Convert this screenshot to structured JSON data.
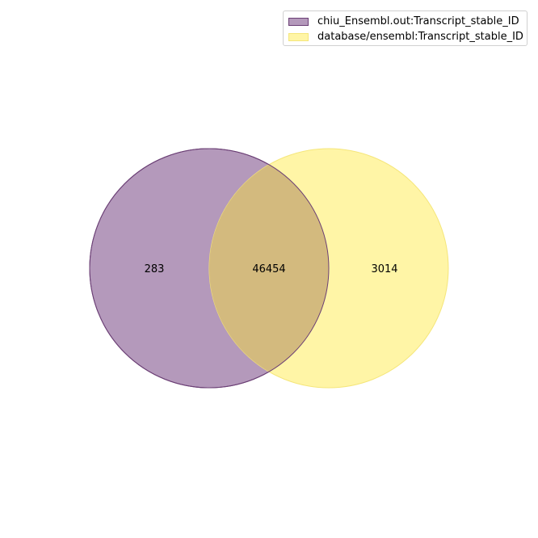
{
  "sets": [
    {
      "name": "chiu_Ensembl.out:Transcript_stable_ID",
      "fill": "#b499bb",
      "stroke": "#6b3f75"
    },
    {
      "name": "database/ensembl:Transcript_stable_ID",
      "fill": "#fff5a6",
      "stroke": "#f5e67a"
    }
  ],
  "regions": {
    "only_a": "283",
    "intersection": "46454",
    "only_b": "3014"
  },
  "colors": {
    "intersection_fill": "#d3ba7e"
  }
}
